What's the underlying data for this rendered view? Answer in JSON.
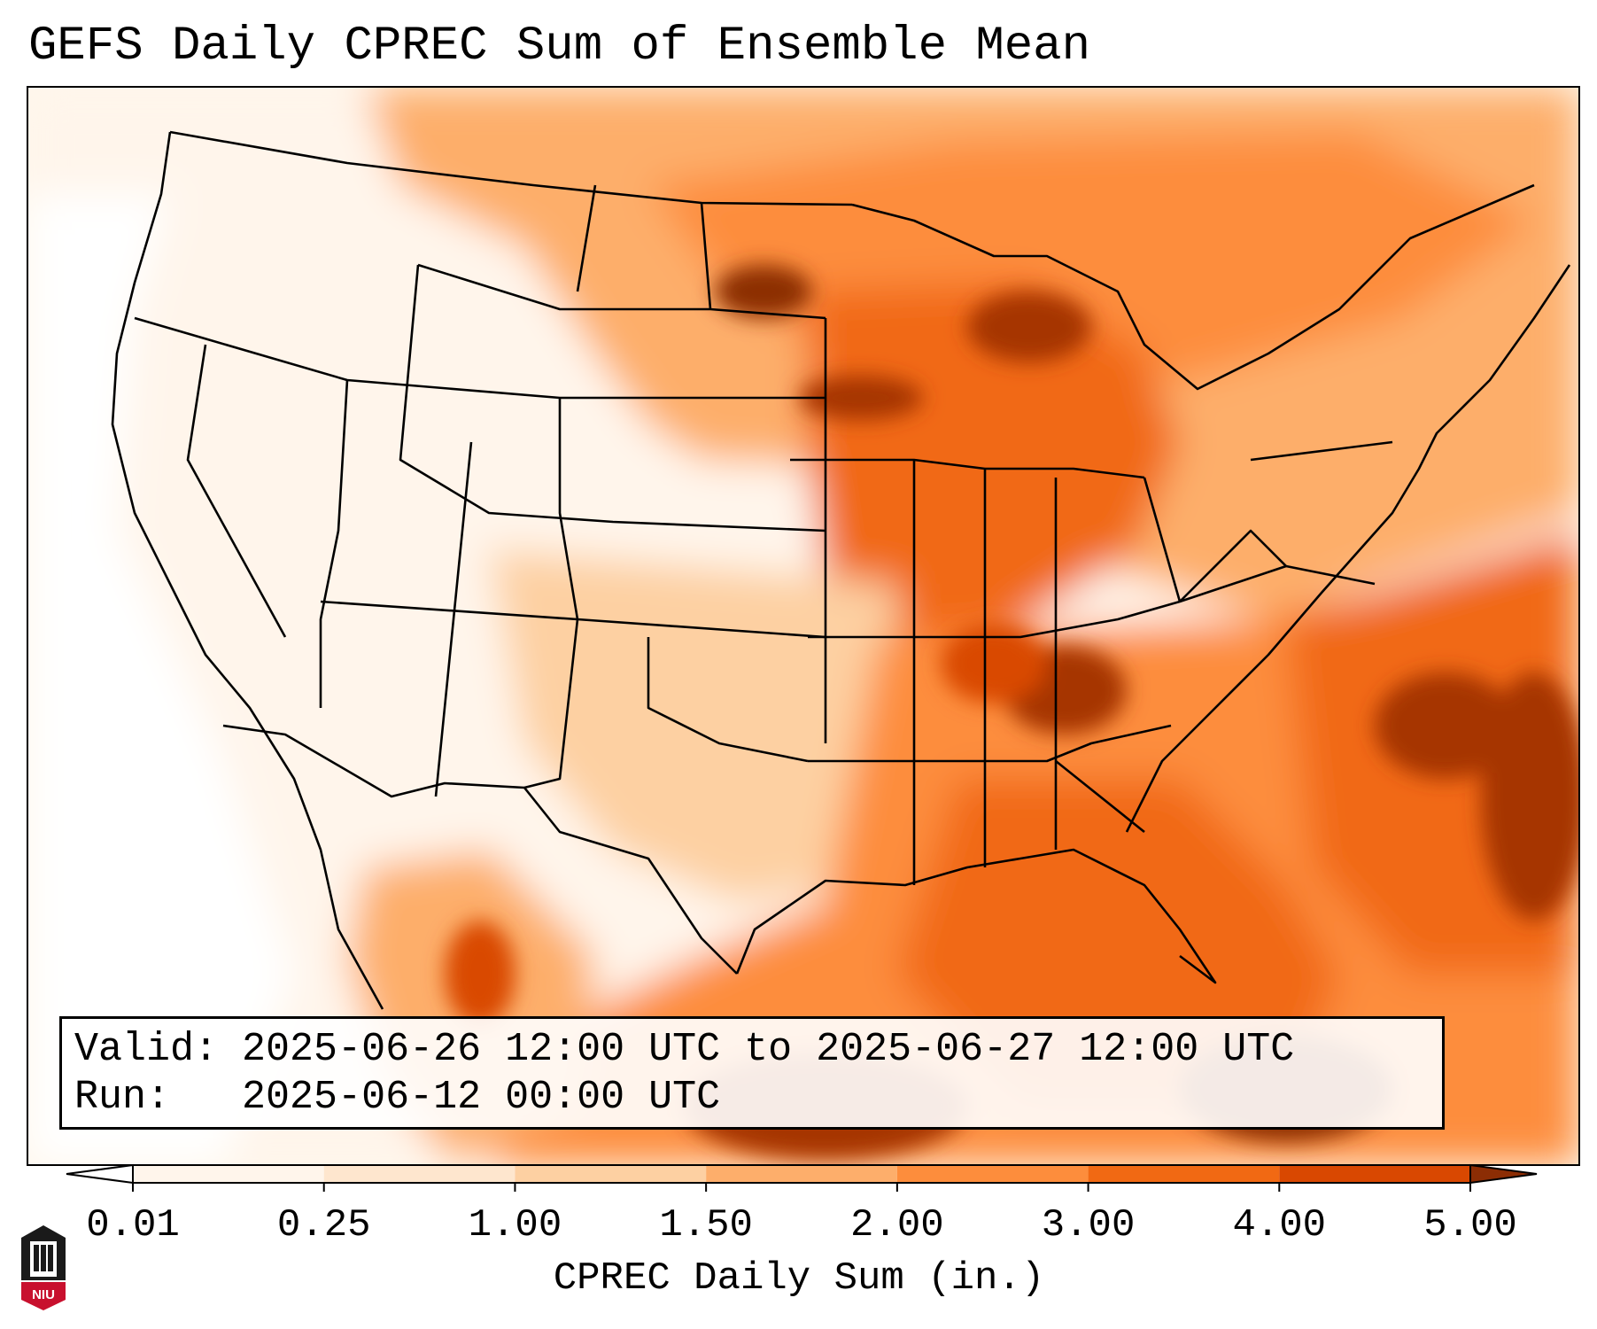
{
  "title": "GEFS Daily CPREC Sum of Ensemble Mean",
  "info": {
    "valid_label": "Valid:",
    "valid_value": "2025-06-26 12:00 UTC to 2025-06-27 12:00 UTC",
    "run_label": "Run:",
    "run_value": "2025-06-12 00:00 UTC"
  },
  "colorbar": {
    "label": "CPREC Daily Sum (in.)",
    "ticks": [
      "0.01",
      "0.25",
      "1.00",
      "1.50",
      "2.00",
      "3.00",
      "4.00",
      "5.00"
    ],
    "colors": [
      "#fff5eb",
      "#fee6ce",
      "#fdd0a2",
      "#fdae6b",
      "#fd8d3c",
      "#f16913",
      "#d94801",
      "#8c2d04"
    ]
  },
  "logo": {
    "text": "NIU",
    "colors": {
      "brand": "#c8102e",
      "dark": "#1a1a1a"
    }
  },
  "map": {
    "region": "Contiguous United States",
    "projection": "Lambert conformal"
  }
}
